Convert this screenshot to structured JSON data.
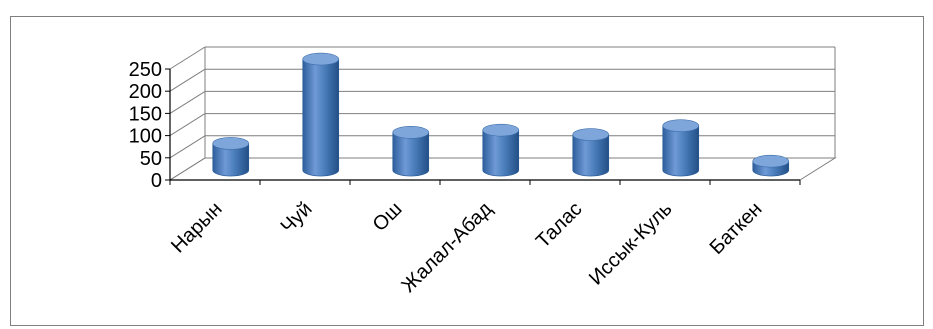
{
  "chart_data": {
    "type": "bar",
    "title": "",
    "xlabel": "",
    "ylabel": "",
    "categories": [
      "Нарын",
      "Чуй",
      "Ош",
      "Жалал-Абад",
      "Талас",
      "Иссык-Куль",
      "Баткен"
    ],
    "values": [
      60,
      250,
      85,
      90,
      80,
      100,
      20
    ],
    "ylim": [
      0,
      250
    ],
    "yticks": [
      "0",
      "50",
      "100",
      "150",
      "200",
      "250"
    ],
    "grid": true,
    "legend": "none",
    "style": "3d-cylinder",
    "colors": {
      "bar": "#4a7ebb",
      "bar_dark": "#2a5a95",
      "bar_light": "#7fa6db",
      "grid": "#7f7f7f",
      "axis": "#000000"
    }
  }
}
